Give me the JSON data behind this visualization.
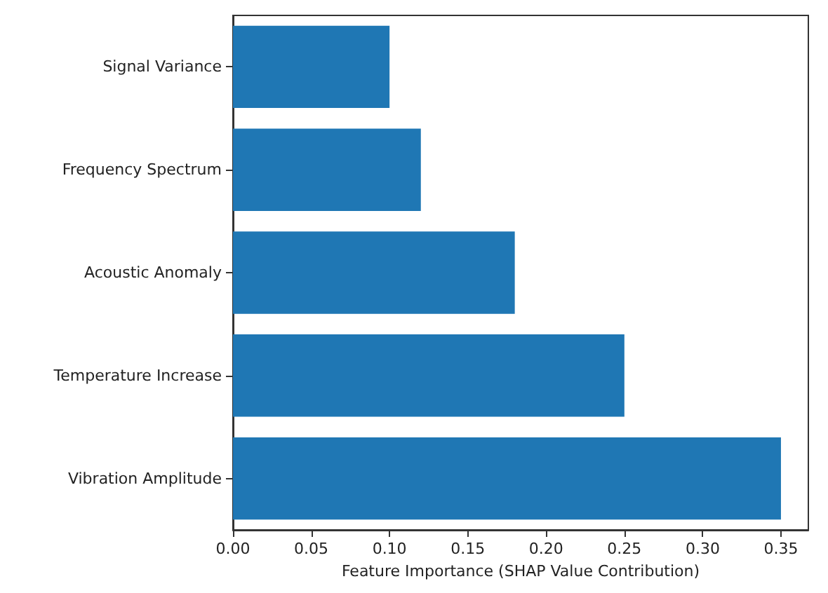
{
  "chart_data": {
    "type": "bar",
    "orientation": "horizontal",
    "categories": [
      "Signal Variance",
      "Frequency Spectrum",
      "Acoustic Anomaly",
      "Temperature Increase",
      "Vibration Amplitude"
    ],
    "values": [
      0.1,
      0.12,
      0.18,
      0.25,
      0.35
    ],
    "color": "#1f77b4",
    "xlabel": "Feature Importance (SHAP Value Contribution)",
    "xlim": [
      0,
      0.3675
    ],
    "xticks": [
      {
        "value": 0,
        "label": "0.00"
      },
      {
        "value": 0.05,
        "label": "0.05"
      },
      {
        "value": 0.1,
        "label": "0.10"
      },
      {
        "value": 0.15,
        "label": "0.15"
      },
      {
        "value": 0.2,
        "label": "0.20"
      },
      {
        "value": 0.25,
        "label": "0.25"
      },
      {
        "value": 0.3,
        "label": "0.30"
      },
      {
        "value": 0.35,
        "label": "0.35"
      }
    ],
    "grid": false
  }
}
